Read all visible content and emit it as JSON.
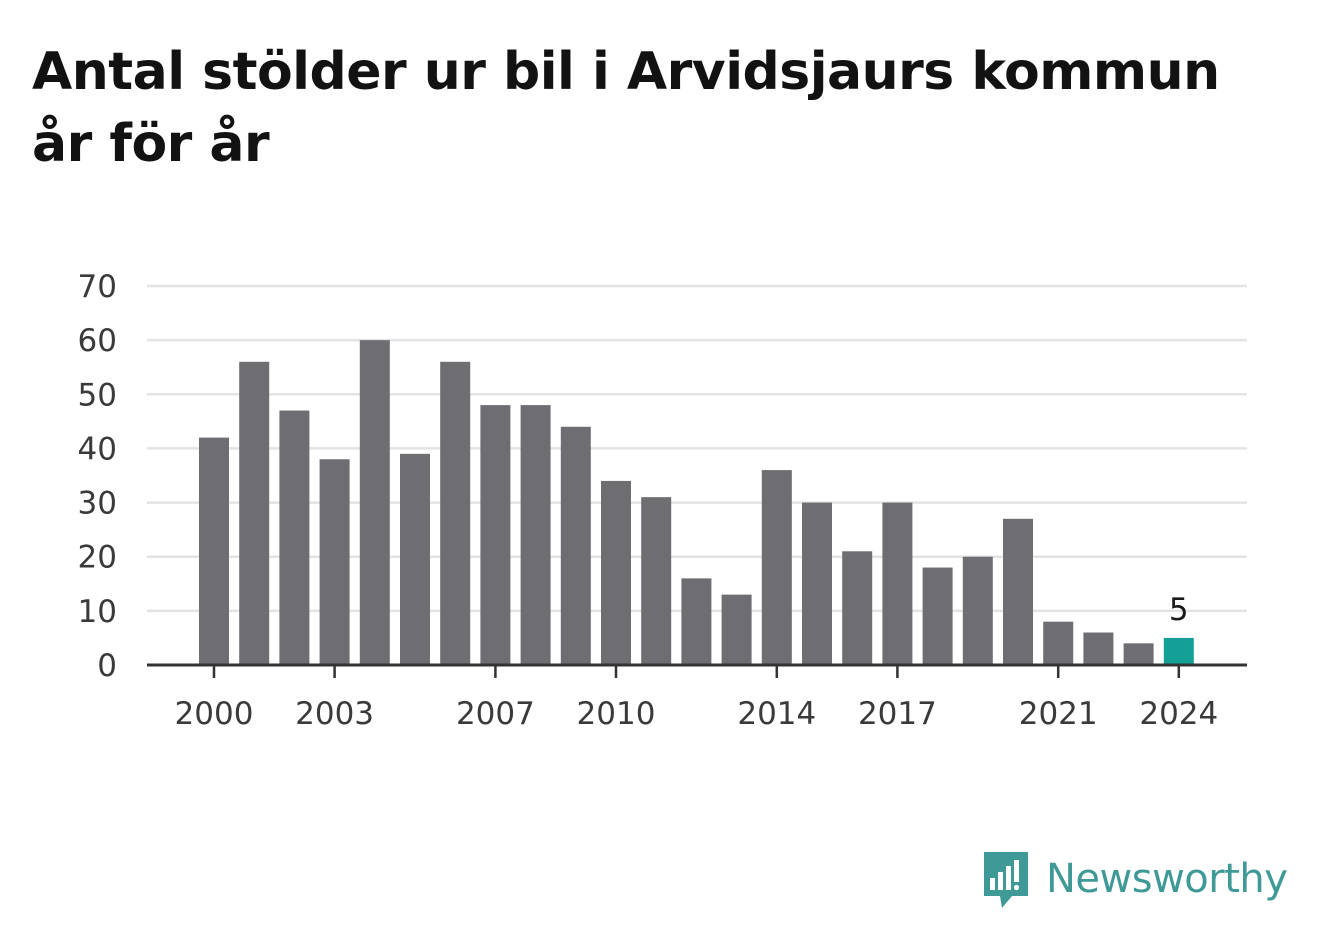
{
  "colors": {
    "bar": "#6e6d72",
    "highlight": "#14a097",
    "grid": "#e3e3e3",
    "axis": "#333333",
    "brand": "#3f9a97"
  },
  "brand": {
    "name": "Newsworthy",
    "icon": "speech-bubble-bar-chart-icon"
  },
  "chart_data": {
    "type": "bar",
    "title": "Antal stölder ur bil i Arvidsjaurs kommun år för år",
    "categories": [
      2000,
      2001,
      2002,
      2003,
      2004,
      2005,
      2006,
      2007,
      2008,
      2009,
      2010,
      2011,
      2012,
      2013,
      2014,
      2015,
      2016,
      2017,
      2018,
      2019,
      2020,
      2021,
      2022,
      2023,
      2024
    ],
    "values": [
      42,
      56,
      47,
      38,
      60,
      39,
      56,
      48,
      48,
      44,
      34,
      31,
      16,
      13,
      36,
      30,
      21,
      30,
      18,
      20,
      27,
      8,
      6,
      4,
      5
    ],
    "ylim": [
      0,
      70
    ],
    "yticks": [
      0,
      10,
      20,
      30,
      40,
      50,
      60,
      70
    ],
    "xticks": [
      2000,
      2003,
      2007,
      2010,
      2014,
      2017,
      2021,
      2024
    ],
    "highlight_category": 2024,
    "highlight_label": "5",
    "grid": true,
    "legend": "none"
  }
}
